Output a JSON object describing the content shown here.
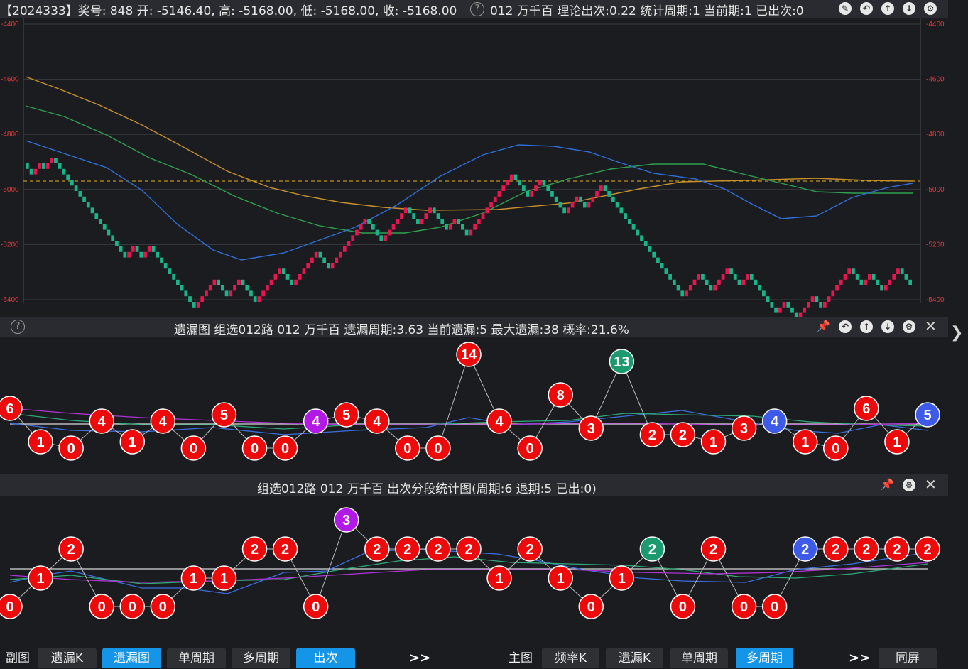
{
  "header": {
    "summary": "【2024333】奖号: 848  开: -5146.40, 高: -5168.00, 低: -5168.00, 收: -5168.00",
    "help": "?",
    "info": "012  万千百  理论出次:0.22  统计周期:1  当前期:1  已出次:0"
  },
  "kline": {
    "axis_labels": [
      "-4400",
      "-4600",
      "-4800",
      "-5000",
      "-5200",
      "-5400"
    ],
    "colors": {
      "up": "#e8164f",
      "down": "#19b48a",
      "ma_blue": "#2f6fd8",
      "ma_green": "#2fa04f",
      "ma_orange": "#c8912a",
      "dash": "#e0b020"
    }
  },
  "missing_panel": {
    "title": "遗漏图  组选012路  012  万千百  遗漏周期:3.63  当前遗漏:5  最大遗漏:38  概率:21.6%",
    "help": "?",
    "values": [
      6,
      1,
      0,
      4,
      1,
      4,
      0,
      5,
      0,
      0,
      4,
      5,
      4,
      0,
      0,
      14,
      4,
      0,
      8,
      3,
      13,
      2,
      2,
      1,
      3,
      4,
      1,
      0,
      6,
      1,
      5
    ]
  },
  "segment_panel": {
    "title": "组选012路  012    万千百  出次分段统计图(周期:6  退期:5 已出:0)",
    "values": [
      0,
      1,
      2,
      0,
      0,
      0,
      1,
      1,
      2,
      2,
      0,
      3,
      2,
      2,
      2,
      2,
      1,
      2,
      1,
      0,
      1,
      2,
      0,
      2,
      0,
      0,
      2,
      2,
      2,
      2,
      2
    ]
  },
  "colors": {
    "red": "#ee0a0a",
    "purple": "#b319e6",
    "green": "#1a9a6e",
    "blue": "#3e5ae8"
  },
  "bottom": {
    "sub_label": "副图",
    "sub_tabs": [
      "遗漏K",
      "遗漏图",
      "单周期",
      "多周期",
      "出次"
    ],
    "more1": ">>",
    "main_label": "主图",
    "main_tabs": [
      "频率K",
      "遗漏K",
      "单周期",
      "多周期"
    ],
    "more2": ">>",
    "same_screen": "同屏"
  }
}
